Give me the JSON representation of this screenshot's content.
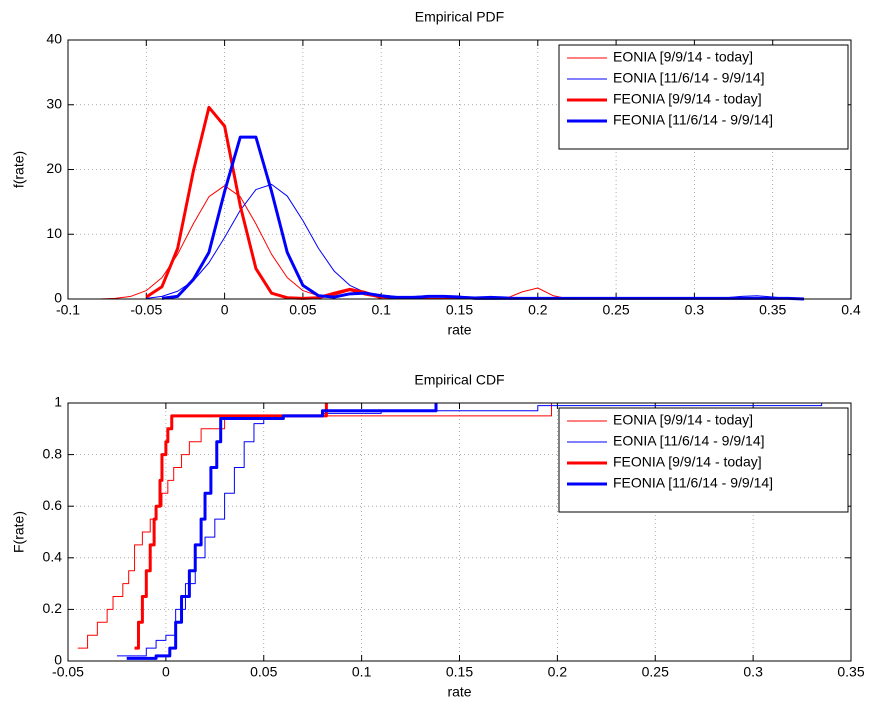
{
  "chart_data": [
    {
      "type": "line",
      "title": "Empirical PDF",
      "xlabel": "rate",
      "ylabel": "f(rate)",
      "xlim": [
        -0.1,
        0.4
      ],
      "ylim": [
        0,
        40
      ],
      "xticks": [
        -0.1,
        -0.05,
        0,
        0.05,
        0.1,
        0.15,
        0.2,
        0.25,
        0.3,
        0.35,
        0.4
      ],
      "yticks": [
        0,
        10,
        20,
        30,
        40
      ],
      "grid": true,
      "legend": "upper right",
      "x": [
        -0.08,
        -0.07,
        -0.06,
        -0.05,
        -0.04,
        -0.03,
        -0.02,
        -0.01,
        0,
        0.01,
        0.02,
        0.03,
        0.04,
        0.05,
        0.06,
        0.07,
        0.08,
        0.09,
        0.1,
        0.11,
        0.12,
        0.13,
        0.14,
        0.15,
        0.16,
        0.17,
        0.18,
        0.19,
        0.2,
        0.21,
        0.22,
        0.23,
        0.24,
        0.25,
        0.26,
        0.27,
        0.28,
        0.29,
        0.3,
        0.31,
        0.32,
        0.33,
        0.34,
        0.35,
        0.36,
        0.37
      ],
      "series": [
        {
          "name": "EONIA [9/9/14 - today]",
          "color": "#ff0000",
          "line_width": 1,
          "values": [
            0,
            0.1,
            0.4,
            1.3,
            3.3,
            6.9,
            11.6,
            15.8,
            17.5,
            15.8,
            11.6,
            6.9,
            3.3,
            1.3,
            0.5,
            0.6,
            1.3,
            0.6,
            0.2,
            0.1,
            0.1,
            0.1,
            0.1,
            0.1,
            0.1,
            0.1,
            0.1,
            1.1,
            1.7,
            0.5,
            0,
            null,
            null,
            null,
            null,
            null,
            null,
            null,
            null,
            null,
            null,
            null,
            null,
            null,
            null,
            null
          ]
        },
        {
          "name": "EONIA [11/6/14 - 9/9/14]",
          "color": "#0000ff",
          "line_width": 1,
          "values": [
            null,
            null,
            null,
            0.1,
            0.4,
            1.2,
            2.8,
            5.6,
            9.5,
            13.7,
            16.9,
            17.7,
            15.9,
            12.1,
            7.8,
            4.3,
            2.1,
            1,
            0.6,
            0.4,
            0.4,
            0.5,
            0.5,
            0.4,
            0.3,
            0.4,
            0.3,
            0.1,
            0.1,
            0.1,
            0.1,
            0.1,
            0.1,
            0.1,
            0.1,
            0.1,
            0.1,
            0.1,
            0.1,
            0.1,
            0.2,
            0.4,
            0.5,
            0.3,
            0.1,
            0
          ]
        },
        {
          "name": "FEONIA [9/9/14 - today]",
          "color": "#ff0000",
          "line_width": 3,
          "values": [
            null,
            null,
            null,
            0.3,
            1.9,
            7.8,
            19.7,
            29.6,
            26.7,
            14.4,
            4.7,
            0.9,
            0.2,
            0.1,
            0.2,
            0.9,
            1.5,
            1,
            0.2,
            null,
            null,
            null,
            null,
            null,
            null,
            null,
            null,
            null,
            null,
            null,
            null,
            null,
            null,
            null,
            null,
            null,
            null,
            null,
            null,
            null,
            null,
            null,
            null,
            null,
            null,
            null
          ]
        },
        {
          "name": "FEONIA [11/6/14 - 9/9/14]",
          "color": "#0000ff",
          "line_width": 3,
          "values": [
            null,
            null,
            null,
            null,
            0.1,
            0.4,
            3,
            7.2,
            16.6,
            25,
            25,
            16.6,
            7.2,
            2.1,
            0.5,
            0.3,
            0.8,
            0.9,
            0.5,
            0.2,
            0.2,
            0.4,
            0.4,
            0.3,
            0.1,
            0.1,
            0.1,
            0.1,
            0.1,
            0.1,
            0.1,
            0.1,
            0.1,
            0.1,
            0.1,
            0.1,
            0.1,
            0.1,
            0.1,
            0.1,
            0.1,
            0.1,
            0.1,
            0.1,
            0.1,
            0
          ]
        }
      ]
    },
    {
      "type": "line",
      "step": true,
      "title": "Empirical CDF",
      "xlabel": "rate",
      "ylabel": "F(rate)",
      "xlim": [
        -0.05,
        0.35
      ],
      "ylim": [
        0,
        1
      ],
      "xticks": [
        -0.05,
        0,
        0.05,
        0.1,
        0.15,
        0.2,
        0.25,
        0.3,
        0.35
      ],
      "yticks": [
        0,
        0.2,
        0.4,
        0.6,
        0.8,
        1
      ],
      "grid": true,
      "legend": "upper right",
      "series": [
        {
          "name": "EONIA [9/9/14 - today]",
          "color": "#ff0000",
          "line_width": 1,
          "x": [
            -0.045,
            -0.04,
            -0.035,
            -0.03,
            -0.027,
            -0.022,
            -0.019,
            -0.016,
            -0.012,
            -0.008,
            -0.005,
            -0.002,
            0.001,
            0.004,
            0.008,
            0.012,
            0.018,
            0.03,
            0.197
          ],
          "values": [
            0.05,
            0.1,
            0.15,
            0.2,
            0.25,
            0.3,
            0.35,
            0.45,
            0.5,
            0.55,
            0.6,
            0.65,
            0.7,
            0.75,
            0.8,
            0.85,
            0.9,
            0.95,
            1
          ]
        },
        {
          "name": "EONIA [11/6/14 - 9/9/14]",
          "color": "#0000ff",
          "line_width": 1,
          "x": [
            -0.025,
            -0.01,
            -0.005,
            0,
            0.005,
            0.01,
            0.015,
            0.02,
            0.025,
            0.03,
            0.035,
            0.04,
            0.045,
            0.05,
            0.08,
            0.11,
            0.19,
            0.335
          ],
          "values": [
            0.02,
            0.05,
            0.08,
            0.1,
            0.2,
            0.3,
            0.4,
            0.48,
            0.55,
            0.65,
            0.75,
            0.85,
            0.92,
            0.95,
            0.96,
            0.97,
            0.99,
            1
          ]
        },
        {
          "name": "FEONIA [9/9/14 - today]",
          "color": "#ff0000",
          "line_width": 3,
          "x": [
            -0.016,
            -0.014,
            -0.012,
            -0.01,
            -0.008,
            -0.006,
            -0.005,
            -0.003,
            -0.002,
            0,
            0.001,
            0.003,
            0.082
          ],
          "values": [
            0.05,
            0.15,
            0.25,
            0.35,
            0.45,
            0.55,
            0.6,
            0.7,
            0.8,
            0.85,
            0.9,
            0.95,
            1
          ]
        },
        {
          "name": "FEONIA [11/6/14 - 9/9/14]",
          "color": "#0000ff",
          "line_width": 3,
          "x": [
            -0.02,
            -0.005,
            0.002,
            0.005,
            0.008,
            0.012,
            0.015,
            0.018,
            0.02,
            0.023,
            0.026,
            0.028,
            0.06,
            0.08,
            0.138
          ],
          "values": [
            0.01,
            0.02,
            0.05,
            0.15,
            0.25,
            0.35,
            0.45,
            0.55,
            0.65,
            0.75,
            0.85,
            0.94,
            0.95,
            0.97,
            1
          ]
        }
      ]
    }
  ]
}
